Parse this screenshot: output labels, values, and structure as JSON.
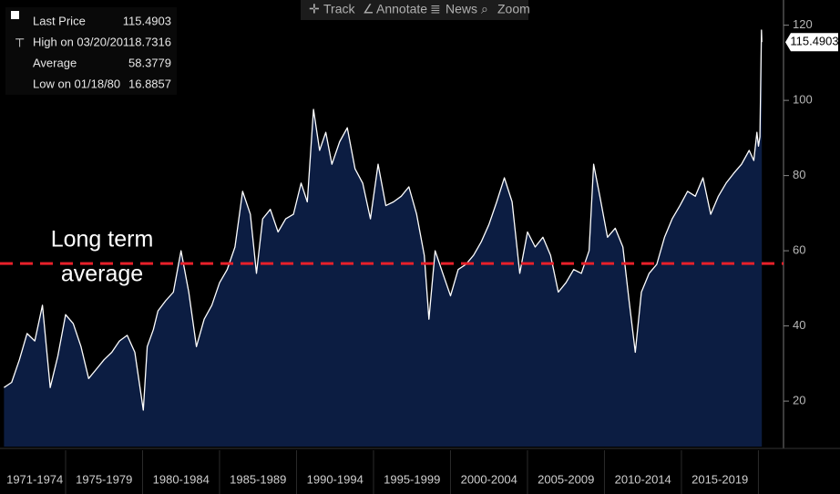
{
  "toolbar": [
    "Track",
    "Annotate",
    "News",
    "Zoom"
  ],
  "chart_data": {
    "type": "area",
    "stats": [
      {
        "label": "Last Price",
        "value": 115.4903
      },
      {
        "label": "High on 03/20/20",
        "value": 118.7316
      },
      {
        "label": "Average",
        "value": 58.3779
      },
      {
        "label": "Low on 01/18/80",
        "value": 16.8857
      }
    ],
    "color": "#ffffff",
    "area_color": "#0c1d42",
    "x": [
      1971.0,
      1971.5,
      1972.0,
      1972.5,
      1973.0,
      1973.5,
      1974.0,
      1974.5,
      1975.0,
      1975.5,
      1976.0,
      1976.5,
      1977.0,
      1977.5,
      1978.0,
      1978.5,
      1979.0,
      1979.5,
      1980.05,
      1980.3,
      1980.7,
      1981.0,
      1981.5,
      1982.0,
      1982.5,
      1983.0,
      1983.5,
      1984.0,
      1984.5,
      1985.0,
      1985.5,
      1986.0,
      1986.5,
      1987.0,
      1987.4,
      1987.8,
      1988.3,
      1988.8,
      1989.3,
      1989.8,
      1990.3,
      1990.7,
      1991.1,
      1991.5,
      1991.9,
      1992.3,
      1992.8,
      1993.3,
      1993.8,
      1994.3,
      1994.8,
      1995.3,
      1995.8,
      1996.3,
      1996.8,
      1997.3,
      1997.8,
      1998.3,
      1998.6,
      1999.0,
      1999.5,
      2000.0,
      2000.5,
      2001.0,
      2001.5,
      2002.0,
      2002.5,
      2003.0,
      2003.5,
      2004.0,
      2004.5,
      2005.0,
      2005.5,
      2006.0,
      2006.5,
      2007.0,
      2007.5,
      2008.0,
      2008.5,
      2009.0,
      2009.3,
      2009.7,
      2010.2,
      2010.7,
      2011.2,
      2011.6,
      2012.0,
      2012.4,
      2012.9,
      2013.4,
      2013.9,
      2014.4,
      2014.9,
      2015.4,
      2015.9,
      2016.4,
      2016.9,
      2017.4,
      2017.9,
      2018.4,
      2018.9,
      2019.4,
      2019.7,
      2019.9,
      2020.0,
      2020.1,
      2020.2,
      2020.22
    ],
    "values": [
      23.6,
      25,
      31,
      38,
      36,
      45.5,
      23.6,
      32,
      43,
      40.6,
      34.5,
      26,
      28.5,
      31,
      33,
      36,
      37.5,
      33,
      17.6,
      34.5,
      39,
      44,
      46.7,
      49,
      60,
      49,
      34.5,
      41.8,
      45.5,
      51.5,
      55,
      61,
      75.8,
      69.7,
      54,
      68.5,
      71,
      65,
      68.5,
      69.7,
      78,
      73,
      97.6,
      86.7,
      91.5,
      83,
      89,
      92.7,
      81.8,
      78,
      68.5,
      83,
      72,
      73,
      74.5,
      77,
      69.7,
      58.8,
      41.8,
      60,
      54,
      48,
      55,
      56.4,
      58.8,
      62.4,
      67,
      73,
      79.4,
      73,
      54,
      65,
      61,
      63.6,
      58.8,
      49,
      51.5,
      55,
      54,
      60,
      83,
      74.5,
      63.6,
      66,
      61,
      46.7,
      33,
      49,
      54,
      56.4,
      63.6,
      68.5,
      72,
      75.8,
      74.5,
      79.4,
      69.7,
      74.5,
      78,
      80.6,
      83,
      86.7,
      84,
      91.5,
      87.8,
      90.3,
      118.7,
      115.5
    ],
    "xlim": [
      1970.74,
      2021.63
    ],
    "ylim": [
      7.9,
      126.7
    ],
    "yticks": [
      20,
      40,
      60,
      80,
      100,
      120
    ],
    "xticks": [
      {
        "value": 1973,
        "label": "1971-1974"
      },
      {
        "value": 1977.5,
        "label": "1975-1979"
      },
      {
        "value": 1982.5,
        "label": "1980-1984"
      },
      {
        "value": 1987.5,
        "label": "1985-1989"
      },
      {
        "value": 1992.5,
        "label": "1990-1994"
      },
      {
        "value": 1997.5,
        "label": "1995-1999"
      },
      {
        "value": 2002.5,
        "label": "2000-2004"
      },
      {
        "value": 2007.5,
        "label": "2005-2009"
      },
      {
        "value": 2012.5,
        "label": "2010-2014"
      },
      {
        "value": 2017.5,
        "label": "2015-2019"
      }
    ],
    "period_bounds": [
      1975,
      1980,
      1985,
      1990,
      1995,
      2000,
      2005,
      2010,
      2015,
      2020
    ],
    "reference_line": {
      "value": 56.6,
      "color": "#e8202a",
      "label_lines": [
        "Long term",
        "average"
      ]
    }
  }
}
